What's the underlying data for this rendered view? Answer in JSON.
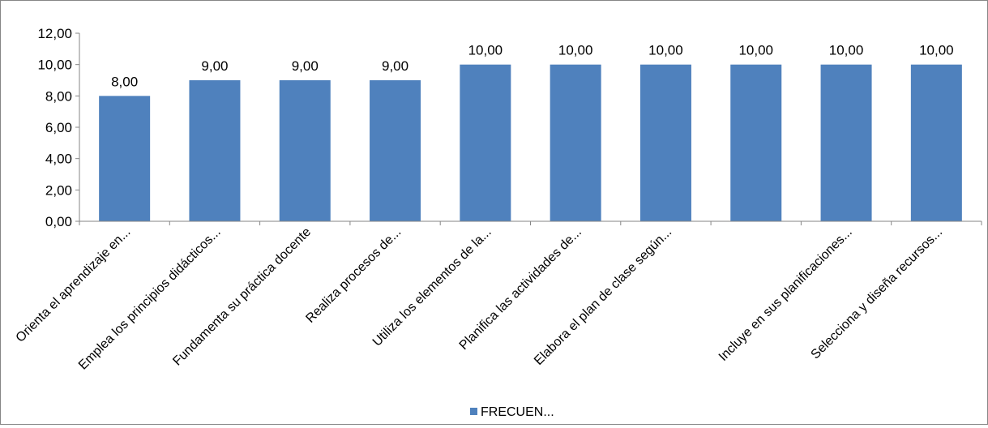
{
  "chart_data": {
    "type": "bar",
    "categories": [
      "Orienta el aprendizaje en...",
      "Emplea los principios didácticos...",
      "Fundamenta su práctica docente",
      "Realiza procesos de...",
      "Utiliza los  elementos de la...",
      "Planifica las actividades de...",
      "Elabora el plan de clase según...",
      "",
      "Incluye en sus planificaciones...",
      "Selecciona y diseña recursos..."
    ],
    "series": [
      {
        "name": "FRECUEN...",
        "values": [
          8,
          9,
          9,
          9,
          10,
          10,
          10,
          10,
          10,
          10
        ],
        "labels": [
          "8,00",
          "9,00",
          "9,00",
          "9,00",
          "10,00",
          "10,00",
          "10,00",
          "10,00",
          "10,00",
          "10,00"
        ]
      }
    ],
    "yticks": [
      0,
      2,
      4,
      6,
      8,
      10,
      12
    ],
    "ytick_labels": [
      "0,00",
      "2,00",
      "4,00",
      "6,00",
      "8,00",
      "10,00",
      "12,00"
    ],
    "ylim": [
      0,
      12
    ],
    "grid": false,
    "legend_position": "bottom",
    "colors": {
      "bar": "#4F81BD",
      "axis": "#868686",
      "frame": "#868686"
    }
  }
}
